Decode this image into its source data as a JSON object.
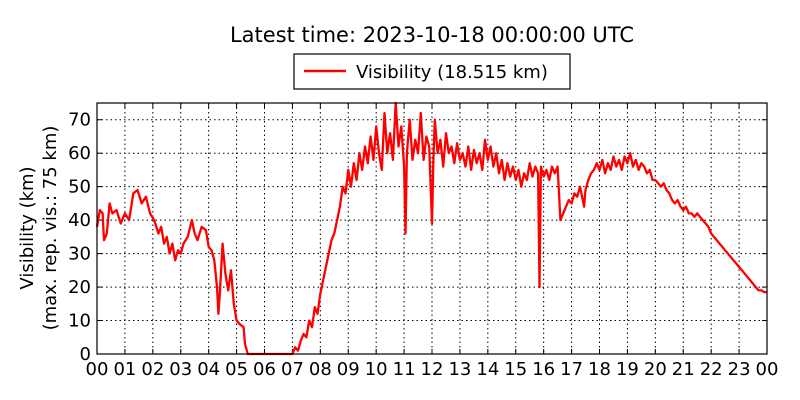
{
  "chart_data": {
    "type": "line",
    "title": "Latest time: 2023-10-18 00:00:00 UTC",
    "xlabel": "",
    "ylabel_line1": "Visibility (km)",
    "ylabel_line2": "(max. rep. vis.: 75 km)",
    "x_tick_labels": [
      "00",
      "01",
      "02",
      "03",
      "04",
      "05",
      "06",
      "07",
      "08",
      "09",
      "10",
      "11",
      "12",
      "13",
      "14",
      "15",
      "16",
      "17",
      "18",
      "19",
      "20",
      "21",
      "22",
      "23",
      "00"
    ],
    "y_ticks": [
      0,
      10,
      20,
      30,
      40,
      50,
      60,
      70
    ],
    "xlim_hours": [
      0,
      24
    ],
    "ylim": [
      0,
      75
    ],
    "grid": true,
    "grid_style": "dotted",
    "legend_position": "top-center",
    "series": [
      {
        "name": "Visibility (18.515 km)",
        "color": "#ff0000",
        "points": [
          [
            0.0,
            38
          ],
          [
            0.1,
            43
          ],
          [
            0.2,
            42
          ],
          [
            0.25,
            34
          ],
          [
            0.35,
            36
          ],
          [
            0.45,
            45
          ],
          [
            0.55,
            42
          ],
          [
            0.7,
            43
          ],
          [
            0.85,
            39
          ],
          [
            1.0,
            42
          ],
          [
            1.15,
            40
          ],
          [
            1.3,
            48
          ],
          [
            1.45,
            49
          ],
          [
            1.6,
            45
          ],
          [
            1.75,
            47
          ],
          [
            1.9,
            42
          ],
          [
            2.05,
            40
          ],
          [
            2.2,
            36
          ],
          [
            2.3,
            38
          ],
          [
            2.4,
            33
          ],
          [
            2.5,
            35
          ],
          [
            2.6,
            30
          ],
          [
            2.7,
            33
          ],
          [
            2.8,
            28
          ],
          [
            2.9,
            31
          ],
          [
            3.0,
            30
          ],
          [
            3.1,
            33
          ],
          [
            3.25,
            35
          ],
          [
            3.4,
            40
          ],
          [
            3.5,
            36
          ],
          [
            3.6,
            34
          ],
          [
            3.75,
            38
          ],
          [
            3.9,
            37
          ],
          [
            4.0,
            32
          ],
          [
            4.1,
            31
          ],
          [
            4.2,
            28
          ],
          [
            4.3,
            20
          ],
          [
            4.35,
            12
          ],
          [
            4.4,
            18
          ],
          [
            4.5,
            33
          ],
          [
            4.6,
            24
          ],
          [
            4.7,
            19
          ],
          [
            4.8,
            25
          ],
          [
            4.85,
            20
          ],
          [
            4.9,
            15
          ],
          [
            5.0,
            10
          ],
          [
            5.1,
            9
          ],
          [
            5.25,
            8
          ],
          [
            5.3,
            3
          ],
          [
            5.4,
            0
          ],
          [
            6.0,
            0
          ],
          [
            6.5,
            0
          ],
          [
            7.0,
            0
          ],
          [
            7.1,
            2
          ],
          [
            7.2,
            1
          ],
          [
            7.3,
            4
          ],
          [
            7.4,
            6
          ],
          [
            7.5,
            5
          ],
          [
            7.6,
            10
          ],
          [
            7.7,
            8
          ],
          [
            7.8,
            14
          ],
          [
            7.9,
            12
          ],
          [
            8.0,
            18
          ],
          [
            8.1,
            22
          ],
          [
            8.2,
            26
          ],
          [
            8.3,
            30
          ],
          [
            8.4,
            34
          ],
          [
            8.5,
            36
          ],
          [
            8.6,
            40
          ],
          [
            8.7,
            44
          ],
          [
            8.8,
            50
          ],
          [
            8.9,
            48
          ],
          [
            9.0,
            55
          ],
          [
            9.1,
            50
          ],
          [
            9.2,
            57
          ],
          [
            9.3,
            52
          ],
          [
            9.4,
            60
          ],
          [
            9.5,
            55
          ],
          [
            9.6,
            62
          ],
          [
            9.7,
            57
          ],
          [
            9.8,
            65
          ],
          [
            9.9,
            58
          ],
          [
            10.0,
            68
          ],
          [
            10.1,
            60
          ],
          [
            10.2,
            55
          ],
          [
            10.3,
            72
          ],
          [
            10.4,
            60
          ],
          [
            10.5,
            66
          ],
          [
            10.6,
            58
          ],
          [
            10.7,
            75
          ],
          [
            10.8,
            62
          ],
          [
            10.9,
            68
          ],
          [
            11.0,
            56
          ],
          [
            11.05,
            36
          ],
          [
            11.1,
            60
          ],
          [
            11.2,
            70
          ],
          [
            11.3,
            58
          ],
          [
            11.4,
            64
          ],
          [
            11.5,
            60
          ],
          [
            11.6,
            72
          ],
          [
            11.7,
            58
          ],
          [
            11.8,
            65
          ],
          [
            11.9,
            62
          ],
          [
            12.0,
            39
          ],
          [
            12.05,
            58
          ],
          [
            12.1,
            70
          ],
          [
            12.2,
            60
          ],
          [
            12.3,
            64
          ],
          [
            12.4,
            56
          ],
          [
            12.5,
            66
          ],
          [
            12.6,
            60
          ],
          [
            12.7,
            62
          ],
          [
            12.8,
            57
          ],
          [
            12.9,
            63
          ],
          [
            13.0,
            58
          ],
          [
            13.1,
            60
          ],
          [
            13.2,
            56
          ],
          [
            13.3,
            62
          ],
          [
            13.4,
            55
          ],
          [
            13.5,
            61
          ],
          [
            13.6,
            57
          ],
          [
            13.7,
            60
          ],
          [
            13.8,
            55
          ],
          [
            13.9,
            64
          ],
          [
            14.0,
            58
          ],
          [
            14.1,
            62
          ],
          [
            14.2,
            56
          ],
          [
            14.3,
            60
          ],
          [
            14.4,
            54
          ],
          [
            14.5,
            58
          ],
          [
            14.6,
            52
          ],
          [
            14.7,
            57
          ],
          [
            14.8,
            53
          ],
          [
            14.9,
            56
          ],
          [
            15.0,
            52
          ],
          [
            15.1,
            55
          ],
          [
            15.2,
            50
          ],
          [
            15.3,
            54
          ],
          [
            15.4,
            52
          ],
          [
            15.5,
            57
          ],
          [
            15.6,
            53
          ],
          [
            15.7,
            56
          ],
          [
            15.8,
            54
          ],
          [
            15.85,
            20
          ],
          [
            15.9,
            56
          ],
          [
            16.0,
            53
          ],
          [
            16.1,
            55
          ],
          [
            16.2,
            52
          ],
          [
            16.3,
            56
          ],
          [
            16.4,
            54
          ],
          [
            16.5,
            56
          ],
          [
            16.55,
            48
          ],
          [
            16.6,
            40
          ],
          [
            16.7,
            42
          ],
          [
            16.8,
            44
          ],
          [
            16.9,
            46
          ],
          [
            17.0,
            45
          ],
          [
            17.1,
            48
          ],
          [
            17.2,
            47
          ],
          [
            17.3,
            50
          ],
          [
            17.4,
            46
          ],
          [
            17.45,
            44
          ],
          [
            17.5,
            49
          ],
          [
            17.6,
            52
          ],
          [
            17.7,
            54
          ],
          [
            17.8,
            55
          ],
          [
            17.9,
            57
          ],
          [
            18.0,
            55
          ],
          [
            18.1,
            58
          ],
          [
            18.2,
            54
          ],
          [
            18.3,
            57
          ],
          [
            18.4,
            55
          ],
          [
            18.5,
            59
          ],
          [
            18.6,
            56
          ],
          [
            18.7,
            58
          ],
          [
            18.8,
            55
          ],
          [
            18.9,
            59
          ],
          [
            19.0,
            57
          ],
          [
            19.1,
            60
          ],
          [
            19.2,
            56
          ],
          [
            19.3,
            58
          ],
          [
            19.4,
            55
          ],
          [
            19.5,
            57
          ],
          [
            19.6,
            56
          ],
          [
            19.7,
            54
          ],
          [
            19.8,
            55
          ],
          [
            19.9,
            52
          ],
          [
            20.0,
            52
          ],
          [
            20.1,
            51
          ],
          [
            20.2,
            50
          ],
          [
            20.3,
            51
          ],
          [
            20.4,
            49
          ],
          [
            20.5,
            48
          ],
          [
            20.6,
            46
          ],
          [
            20.7,
            45
          ],
          [
            20.8,
            46
          ],
          [
            20.9,
            44
          ],
          [
            21.0,
            43
          ],
          [
            21.1,
            44
          ],
          [
            21.2,
            42
          ],
          [
            21.3,
            42
          ],
          [
            21.4,
            41
          ],
          [
            21.5,
            42
          ],
          [
            21.6,
            41
          ],
          [
            21.7,
            40
          ],
          [
            21.8,
            39
          ],
          [
            21.9,
            38
          ],
          [
            22.0,
            36
          ],
          [
            22.1,
            35
          ],
          [
            22.2,
            34
          ],
          [
            22.3,
            33
          ],
          [
            22.4,
            32
          ],
          [
            22.5,
            31
          ],
          [
            22.6,
            30
          ],
          [
            22.7,
            29
          ],
          [
            22.8,
            28
          ],
          [
            22.9,
            27
          ],
          [
            23.0,
            26
          ],
          [
            23.1,
            25
          ],
          [
            23.2,
            24
          ],
          [
            23.3,
            23
          ],
          [
            23.4,
            22
          ],
          [
            23.5,
            21
          ],
          [
            23.6,
            20
          ],
          [
            23.7,
            19
          ],
          [
            23.8,
            19
          ],
          [
            23.9,
            18.5
          ],
          [
            24.0,
            18.5
          ]
        ]
      }
    ]
  }
}
